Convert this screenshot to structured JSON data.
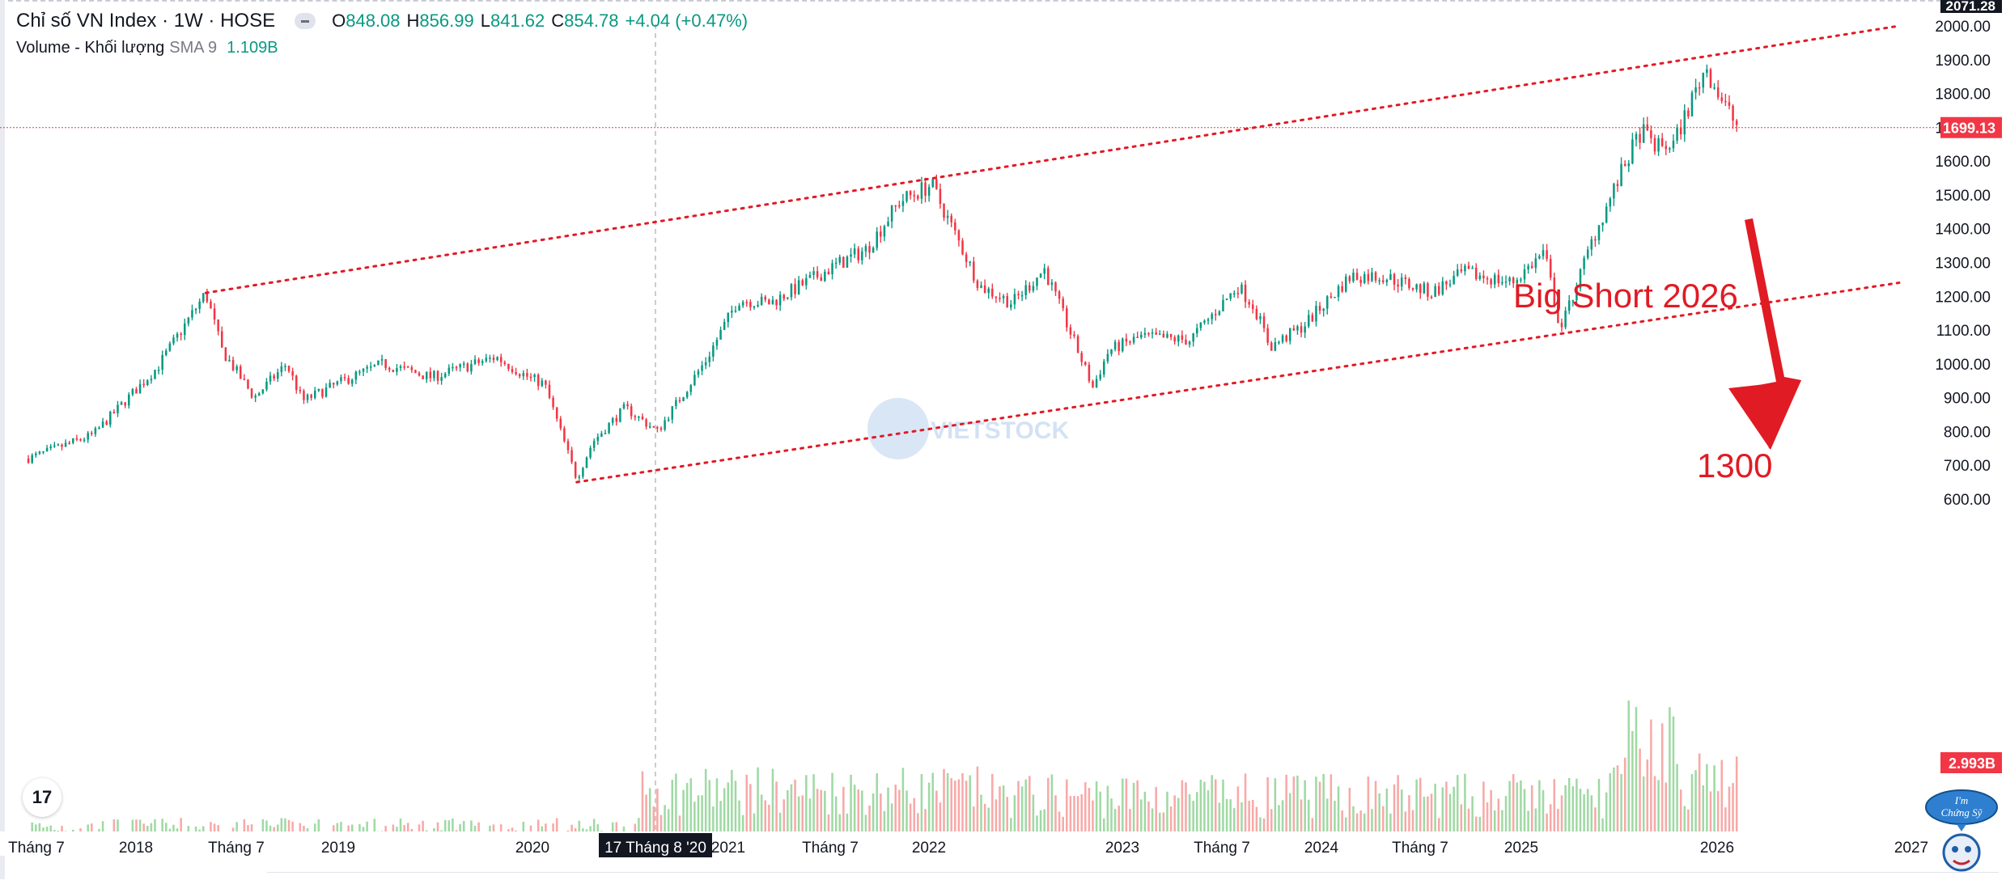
{
  "legend": {
    "title": "Chỉ số VN Index · 1W · HOSE",
    "o_label": "O",
    "o_value": "848.08",
    "h_label": "H",
    "h_value": "856.99",
    "l_label": "L",
    "l_value": "841.62",
    "c_label": "C",
    "c_value": "854.78",
    "change": "+4.04 (+0.47%)",
    "volume_name": "Volume - Khối lượng",
    "volume_sma": "SMA 9",
    "volume_value": "1.109B"
  },
  "colors": {
    "up": "#089981",
    "down": "#f23645",
    "vol_up": "#9fd9a3",
    "vol_down": "#f7a9a7",
    "channel": "#e01b24",
    "annotation": "#e01b24",
    "price_badge": "#f23645",
    "crosshair": "#9598a1"
  },
  "watermark": "VIETSTOCK",
  "mascot_text": [
    "I'm",
    "Chứng Sỹ"
  ],
  "chart_data": {
    "type": "candlestick",
    "title": "Chỉ số VN Index · 1W · HOSE",
    "y_axis": {
      "ticks": [
        "2000.00",
        "1900.00",
        "1800.00",
        "1700.00",
        "1600.00",
        "1500.00",
        "1400.00",
        "1300.00",
        "1200.00",
        "1100.00",
        "1000.00",
        "900.00",
        "800.00",
        "700.00",
        "600.00"
      ],
      "top_badge": "2071.28",
      "last_price_badge": "1699.13",
      "volume_badge": "2.993B",
      "range": [
        575,
        2071
      ]
    },
    "x_axis": {
      "ticks": [
        "Tháng 7",
        "2018",
        "Tháng 7",
        "2019",
        "2020",
        "2021",
        "Tháng 7",
        "2022",
        "2023",
        "Tháng 7",
        "2024",
        "Tháng 7",
        "2025",
        "2026",
        "2027"
      ],
      "crosshair_label": "17 Tháng 8 '20"
    },
    "series": [
      {
        "name": "Chỉ số VN Index",
        "kind": "price_path",
        "x": [
          "2017-05",
          "2017-09",
          "2018-01",
          "2018-04",
          "2018-05",
          "2018-07",
          "2018-09",
          "2018-10",
          "2019-01",
          "2019-03",
          "2019-06",
          "2019-10",
          "2019-12",
          "2020-01",
          "2020-03",
          "2020-04",
          "2020-06",
          "2020-08",
          "2020-11",
          "2021-01",
          "2021-03",
          "2021-07",
          "2021-09",
          "2021-11",
          "2022-01",
          "2022-04",
          "2022-06",
          "2022-08",
          "2022-11",
          "2022-12",
          "2023-02",
          "2023-05",
          "2023-08",
          "2023-09",
          "2023-10",
          "2023-12",
          "2024-03",
          "2024-05",
          "2024-08",
          "2024-10",
          "2025-01",
          "2025-03",
          "2025-04",
          "2025-06",
          "2025-08",
          "2025-09",
          "2025-10",
          "2025-11",
          "2026-01",
          "2026-02",
          "2026-03"
        ],
        "y": [
          720,
          790,
          990,
          1210,
          1040,
          900,
          1000,
          890,
          960,
          1000,
          960,
          1020,
          960,
          940,
          660,
          770,
          870,
          800,
          1010,
          1190,
          1180,
          1290,
          1340,
          1480,
          1530,
          1230,
          1180,
          1280,
          930,
          1040,
          1080,
          1070,
          1230,
          1170,
          1050,
          1110,
          1260,
          1260,
          1210,
          1270,
          1240,
          1330,
          1100,
          1370,
          1590,
          1690,
          1640,
          1650,
          1880,
          1780,
          1699
        ]
      },
      {
        "name": "Volume - Khối lượng",
        "kind": "volume",
        "x": [
          "2017",
          "2018",
          "2019",
          "2020",
          "2021",
          "2022",
          "2023",
          "2024",
          "2025",
          "2026"
        ],
        "y": [
          0.25,
          0.3,
          0.25,
          0.3,
          0.8,
          0.9,
          0.75,
          0.8,
          0.9,
          2.993
        ],
        "unit": "B"
      }
    ],
    "channel_upper": {
      "from": [
        "2018-04",
        1210
      ],
      "to": [
        "2027",
        2000
      ]
    },
    "channel_lower": {
      "from": [
        "2020-03",
        650
      ],
      "to": [
        "2027",
        1240
      ]
    },
    "annotations": [
      "Big Short 2026",
      "1300"
    ],
    "grid": false,
    "legend_position": "top-left"
  }
}
